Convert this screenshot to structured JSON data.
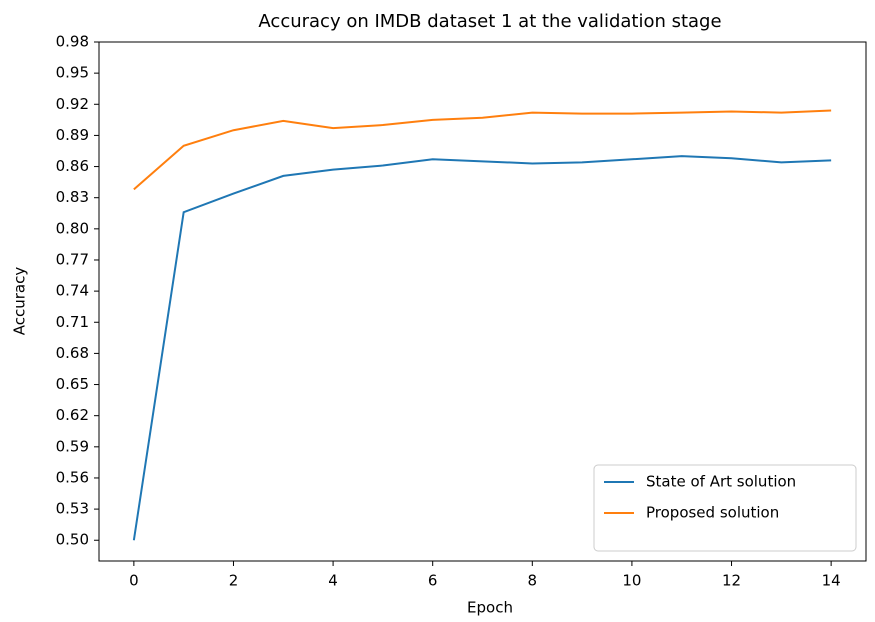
{
  "chart_data": {
    "type": "line",
    "title": "Accuracy on IMDB dataset 1 at the validation stage",
    "xlabel": "Epoch",
    "ylabel": "Accuracy",
    "x": [
      0,
      1,
      2,
      3,
      4,
      5,
      6,
      7,
      8,
      9,
      10,
      11,
      12,
      13,
      14
    ],
    "series": [
      {
        "name": "State of Art solution",
        "color": "#1f77b4",
        "values": [
          0.5,
          0.816,
          0.834,
          0.851,
          0.857,
          0.861,
          0.867,
          0.865,
          0.863,
          0.864,
          0.867,
          0.87,
          0.868,
          0.864,
          0.866
        ]
      },
      {
        "name": "Proposed solution",
        "color": "#ff7f0e",
        "values": [
          0.838,
          0.88,
          0.895,
          0.904,
          0.897,
          0.9,
          0.905,
          0.907,
          0.912,
          0.911,
          0.911,
          0.912,
          0.913,
          0.912,
          0.914
        ]
      }
    ],
    "xlim": [
      -0.7,
      14.7
    ],
    "xticks": [
      0,
      2,
      4,
      6,
      8,
      10,
      12,
      14
    ],
    "ylim": [
      0.48,
      0.98
    ],
    "yticks": [
      {
        "value": 0.5,
        "label": "0.50"
      },
      0.53,
      0.56,
      0.59,
      0.62,
      0.65,
      0.68,
      0.71,
      0.74,
      0.77,
      {
        "value": 0.8,
        "label": "0.80"
      },
      0.83,
      0.86,
      0.89,
      0.92,
      0.95,
      0.98
    ],
    "legend": "lower right",
    "grid": false
  }
}
